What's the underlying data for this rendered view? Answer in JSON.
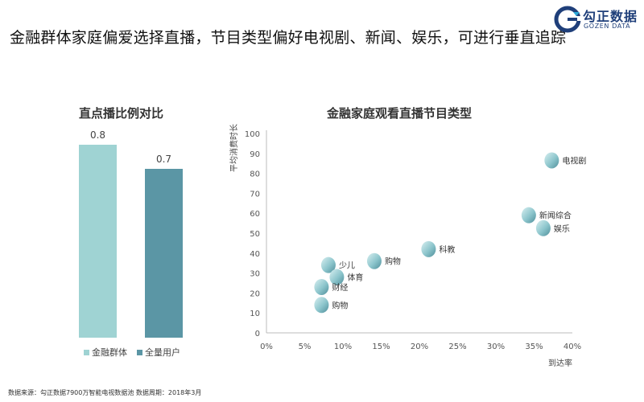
{
  "header": {
    "headline": "金融群体家庭偏爱选择直播，节目类型偏好电视剧、新闻、娱乐，可进行垂直追踪",
    "logo_cn": "勾正数据",
    "logo_en": "GOZEN DATA",
    "brand_color": "#1f3f7a"
  },
  "footer": {
    "source": "数据来源：勾正数据7900万智能电视数据池  数据周期：2018年3月"
  },
  "chart_data": [
    {
      "type": "bar",
      "title": "直点播比例对比",
      "categories": [
        "金融群体",
        "全量用户"
      ],
      "values": [
        0.8,
        0.7
      ],
      "colors": [
        "#9fd3d3",
        "#5b96a5"
      ],
      "ylim": [
        0,
        1
      ],
      "legend": "bottom",
      "grid": false
    },
    {
      "type": "scatter",
      "title": "金融家庭观看直播节目类型",
      "xlabel": "到达率",
      "ylabel": "平均消费时长",
      "xlim": [
        0,
        40
      ],
      "ylim": [
        0,
        100
      ],
      "xticks": [
        "0%",
        "5%",
        "10%",
        "15%",
        "20%",
        "25%",
        "30%",
        "35%",
        "40%"
      ],
      "yticks": [
        "0",
        "10",
        "20",
        "30",
        "40",
        "50",
        "60",
        "70",
        "80",
        "90",
        "100"
      ],
      "grid": false,
      "points": [
        {
          "label": "电视剧",
          "x": 37.3,
          "y": 86.5
        },
        {
          "label": "新闻综合",
          "x": 34.3,
          "y": 59.0
        },
        {
          "label": "娱乐",
          "x": 36.2,
          "y": 52.5
        },
        {
          "label": "科教",
          "x": 21.2,
          "y": 42.0
        },
        {
          "label": "购物",
          "x": 14.1,
          "y": 36.0
        },
        {
          "label": "少儿",
          "x": 8.1,
          "y": 34.0
        },
        {
          "label": "体育",
          "x": 9.2,
          "y": 28.0
        },
        {
          "label": "财经",
          "x": 7.2,
          "y": 23.0
        },
        {
          "label": "购物",
          "x": 7.2,
          "y": 14.0
        }
      ]
    }
  ]
}
